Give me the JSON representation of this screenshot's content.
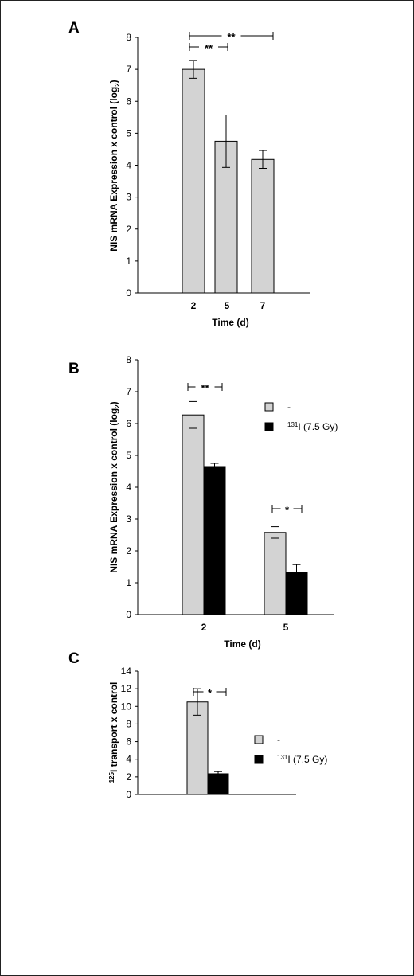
{
  "colors": {
    "gray": "#d3d3d3",
    "black": "#000000"
  },
  "chart_data": [
    {
      "panel": "A",
      "type": "bar",
      "categories": [
        "2",
        "5",
        "7"
      ],
      "series": [
        {
          "values": [
            7.0,
            4.75,
            4.18
          ],
          "errors": [
            0.28,
            0.82,
            0.28
          ]
        }
      ],
      "ylim": [
        0,
        8
      ],
      "yticks": [
        "0",
        "1",
        "2",
        "3",
        "4",
        "5",
        "6",
        "7",
        "8"
      ],
      "xlabel": "Time (d)",
      "ylabel": "NIS mRNA Expression x control (log",
      "ylabel_sub": "2",
      "ylabel_end": ")",
      "significance": [
        "**",
        "**"
      ]
    },
    {
      "panel": "B",
      "type": "bar",
      "categories": [
        "2",
        "5"
      ],
      "series": [
        {
          "name": "-",
          "values": [
            6.27,
            2.58
          ],
          "errors": [
            0.42,
            0.18
          ]
        },
        {
          "name": "131I (7.5 Gy)",
          "values": [
            4.65,
            1.32
          ],
          "errors": [
            0.1,
            0.25
          ]
        }
      ],
      "ylim": [
        0,
        8
      ],
      "yticks": [
        "0",
        "1",
        "2",
        "3",
        "4",
        "5",
        "6",
        "7",
        "8"
      ],
      "xlabel": "Time (d)",
      "ylabel": "NIS mRNA Expression x control (log",
      "ylabel_sub": "2",
      "ylabel_end": ")",
      "legend": {
        "placement": "right",
        "items": [
          "-",
          "(7.5 Gy)"
        ],
        "sup": "131",
        "iso": "I"
      },
      "significance": [
        "**",
        "*"
      ]
    },
    {
      "panel": "C",
      "type": "bar",
      "categories": [
        ""
      ],
      "series": [
        {
          "name": "-",
          "values": [
            10.5
          ],
          "errors": [
            1.5
          ]
        },
        {
          "name": "131I (7.5 Gy)",
          "values": [
            2.35
          ],
          "errors": [
            0.25
          ]
        }
      ],
      "ylim": [
        0,
        14
      ],
      "yticks": [
        "0",
        "2",
        "4",
        "6",
        "8",
        "10",
        "12",
        "14"
      ],
      "ylabel_sup": "125",
      "ylabel": "I  transport x control",
      "legend": {
        "placement": "right",
        "items": [
          "-",
          "(7.5 Gy)"
        ],
        "sup": "131",
        "iso": "I"
      },
      "significance": [
        "*"
      ]
    }
  ]
}
